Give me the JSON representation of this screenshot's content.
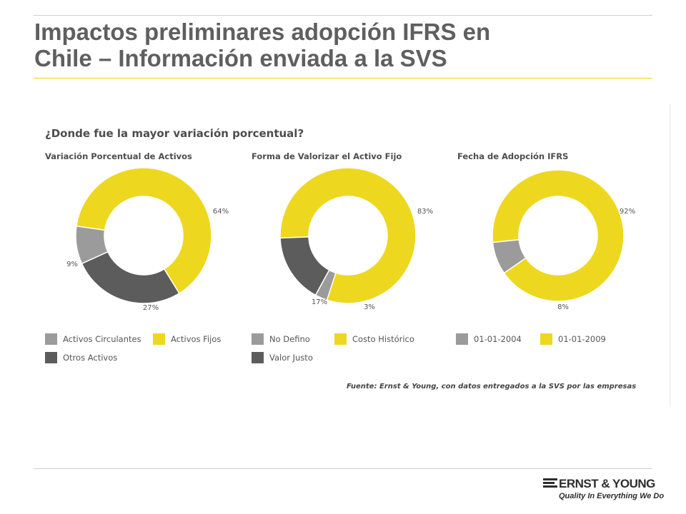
{
  "slide": {
    "title_line1": "Impactos preliminares adopción IFRS en",
    "title_line2": "Chile – Información enviada a la SVS",
    "question": "¿Donde fue la mayor variación porcentual?",
    "source": "Fuente: Ernst & Young, con datos entregados a la SVS por las empresas",
    "colors": {
      "title": "#5f5f5f",
      "rule_top": "#cfcfcf",
      "rule_accent": "#f0d200"
    }
  },
  "logo": {
    "name": "ERNST & YOUNG",
    "tagline": "Quality In Everything We Do"
  },
  "chart_data": [
    {
      "type": "pie",
      "donut": true,
      "title": "Variación Porcentual de Activos",
      "categories": [
        "Activos Fijos",
        "Otros Activos",
        "Activos Circulantes"
      ],
      "values": [
        64,
        27,
        9
      ],
      "labels": [
        "64%",
        "27%",
        "9%"
      ],
      "colors": [
        "#eed71f",
        "#5c5c5c",
        "#9b9b9b"
      ],
      "legend": [
        {
          "label": "Activos Circulantes",
          "color": "#9b9b9b"
        },
        {
          "label": "Activos Fijos",
          "color": "#eed71f"
        },
        {
          "label": "Otros Activos",
          "color": "#5c5c5c"
        }
      ]
    },
    {
      "type": "pie",
      "donut": true,
      "title": "Forma de Valorizar el Activo Fijo",
      "categories": [
        "Costo Histórico",
        "No Defino",
        "Valor Justo"
      ],
      "values": [
        83,
        3,
        17
      ],
      "labels": [
        "83%",
        "3%",
        "17%"
      ],
      "colors": [
        "#eed71f",
        "#9b9b9b",
        "#5c5c5c"
      ],
      "legend": [
        {
          "label": "No Defino",
          "color": "#9b9b9b"
        },
        {
          "label": "Costo Histórico",
          "color": "#eed71f"
        },
        {
          "label": "Valor Justo",
          "color": "#5c5c5c"
        }
      ]
    },
    {
      "type": "pie",
      "donut": true,
      "title": "Fecha de Adopción IFRS",
      "categories": [
        "01-01-2009",
        "01-01-2004"
      ],
      "values": [
        92,
        8
      ],
      "labels": [
        "92%",
        "8%"
      ],
      "colors": [
        "#eed71f",
        "#9b9b9b"
      ],
      "legend": [
        {
          "label": "01-01-2004",
          "color": "#9b9b9b"
        },
        {
          "label": "01-01-2009",
          "color": "#eed71f"
        }
      ]
    }
  ]
}
